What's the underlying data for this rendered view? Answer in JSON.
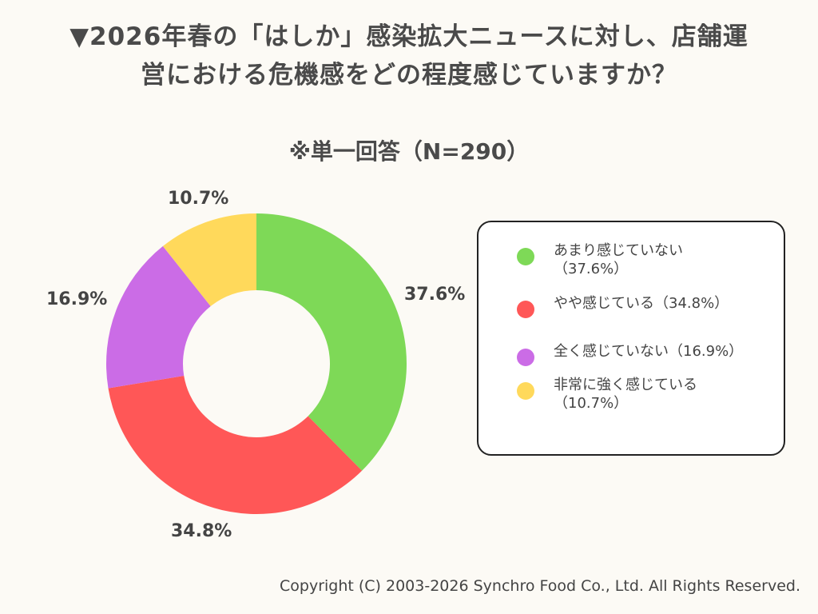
{
  "title_line1": "▼2026年春の「はしか」感染拡大ニュースに対し、店舗運",
  "title_line2": "営における危機感をどの程度感じていますか？",
  "subtitle": "※単一回答（N=290）",
  "copyright": "Copyright (C) 2003-2026  Synchro Food Co., Ltd. All Rights Reserved.",
  "chart_data": {
    "type": "pie",
    "donut": true,
    "unit": "%",
    "categories": [
      "あまり感じていない",
      "やや感じている",
      "全く感じていない",
      "非常に強く感じている"
    ],
    "values": [
      37.6,
      34.8,
      16.9,
      10.7
    ],
    "labels": [
      "37.6%",
      "34.8%",
      "16.9%",
      "10.7%"
    ],
    "colors": [
      "#7ed957",
      "#ff5757",
      "#cb6ce6",
      "#ffd95b"
    ],
    "legend": [
      {
        "text": "あまり感じていない\n（37.6%）",
        "color": "#7ed957"
      },
      {
        "text": "やや感じている（34.8%）",
        "color": "#ff5757"
      },
      {
        "text": "全く感じていない（16.9%）",
        "color": "#cb6ce6"
      },
      {
        "text": "非常に強く感じている\n（10.7%）",
        "color": "#ffd95b"
      }
    ],
    "legend_position": "right"
  }
}
